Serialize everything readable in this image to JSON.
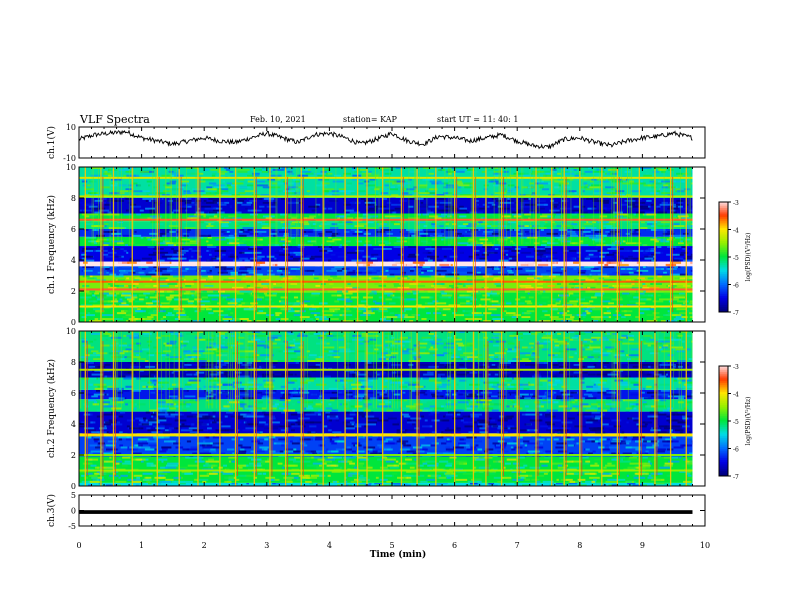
{
  "header": {
    "title": "VLF Spectra",
    "date": "Feb. 10, 2021",
    "station": "station= KAP",
    "start": "start  UT  =   11: 40: 1"
  },
  "chart_data": [
    {
      "type": "line",
      "panel": "ch1-waveform",
      "ylabel": "ch.1(V)",
      "ylim": [
        -10,
        10
      ],
      "yticks": [
        "10",
        "-10"
      ],
      "x": [
        0.0,
        0.25,
        0.5,
        0.75,
        1.0,
        1.25,
        1.5,
        1.75,
        2.0,
        2.25,
        2.5,
        2.75,
        3.0,
        3.25,
        3.5,
        3.75,
        4.0,
        4.25,
        4.5,
        4.75,
        5.0,
        5.25,
        5.5,
        5.75,
        6.0,
        6.25,
        6.5,
        6.75,
        7.0,
        7.25,
        7.5,
        7.75,
        8.0,
        8.25,
        8.5,
        8.75,
        9.0,
        9.25,
        9.5,
        9.8
      ],
      "y": [
        2,
        5,
        6,
        7,
        3,
        1,
        -1,
        1,
        3,
        1,
        0,
        3,
        6,
        3,
        0,
        5,
        6,
        3,
        -1,
        2,
        6,
        1,
        -1,
        4,
        3,
        1,
        3,
        5,
        1,
        -2,
        -3,
        2,
        3,
        0,
        -2,
        1,
        3,
        4,
        6,
        3
      ]
    },
    {
      "type": "heatmap",
      "panel": "ch1-spectrogram",
      "ylabel": "ch.1 Frequency (kHz)",
      "ylim": [
        0,
        10
      ],
      "yticks": [
        "0",
        "2",
        "4",
        "6",
        "8",
        "10"
      ],
      "colorbar": {
        "label": "log(PSD)(V²/Hz)",
        "ticks": [
          "-3",
          "-4",
          "-5",
          "-6",
          "-7"
        ],
        "range": [
          -7,
          -3
        ]
      },
      "bands_khz": [
        {
          "from": 0.0,
          "to": 1.9,
          "level": -5.0
        },
        {
          "from": 1.9,
          "to": 3.0,
          "level": -4.6
        },
        {
          "from": 3.0,
          "to": 3.6,
          "level": -6.2
        },
        {
          "from": 3.6,
          "to": 3.9,
          "level": -3.0
        },
        {
          "from": 3.9,
          "to": 4.9,
          "level": -6.5
        },
        {
          "from": 4.9,
          "to": 5.5,
          "level": -5.0
        },
        {
          "from": 5.5,
          "to": 6.0,
          "level": -6.3
        },
        {
          "from": 6.0,
          "to": 6.5,
          "level": -5.2
        },
        {
          "from": 6.5,
          "to": 7.0,
          "level": -5.0
        },
        {
          "from": 7.0,
          "to": 8.0,
          "level": -6.6
        },
        {
          "from": 8.0,
          "to": 10.0,
          "level": -5.3
        }
      ],
      "lines_khz": [
        {
          "f": 1.0,
          "level": -4.0
        },
        {
          "f": 2.1,
          "level": -3.4
        },
        {
          "f": 2.6,
          "level": -3.6
        },
        {
          "f": 6.6,
          "level": -3.4
        },
        {
          "f": 8.1,
          "level": -4.3
        },
        {
          "f": 9.3,
          "level": -4.2
        }
      ],
      "sferics_min": [
        0.1,
        0.35,
        0.55,
        0.85,
        1.25,
        1.6,
        1.9,
        2.25,
        2.5,
        2.8,
        3.05,
        3.3,
        3.55,
        3.9,
        4.25,
        4.45,
        4.6,
        4.85,
        5.15,
        5.4,
        5.7,
        6.0,
        6.3,
        6.5,
        6.75,
        7.0,
        7.3,
        7.55,
        7.75,
        8.0,
        8.35,
        8.6,
        8.95,
        9.2,
        9.45,
        9.7
      ]
    },
    {
      "type": "heatmap",
      "panel": "ch2-spectrogram",
      "ylabel": "ch.2 Frequency (kHz)",
      "ylim": [
        0,
        10
      ],
      "yticks": [
        "0",
        "2",
        "4",
        "6",
        "8",
        "10"
      ],
      "colorbar": {
        "label": "log(PSD)(V²/Hz)",
        "ticks": [
          "-3",
          "-4",
          "-5",
          "-6",
          "-7"
        ],
        "range": [
          -7,
          -3
        ]
      },
      "bands_khz": [
        {
          "from": 0.0,
          "to": 0.2,
          "level": -5.5
        },
        {
          "from": 0.2,
          "to": 1.9,
          "level": -5.0
        },
        {
          "from": 1.9,
          "to": 3.2,
          "level": -6.2
        },
        {
          "from": 3.2,
          "to": 3.4,
          "level": -4.2
        },
        {
          "from": 3.4,
          "to": 4.8,
          "level": -6.6
        },
        {
          "from": 4.8,
          "to": 5.6,
          "level": -5.2
        },
        {
          "from": 5.6,
          "to": 6.2,
          "level": -6.4
        },
        {
          "from": 6.2,
          "to": 7.0,
          "level": -5.3
        },
        {
          "from": 7.0,
          "to": 8.0,
          "level": -6.7
        },
        {
          "from": 8.0,
          "to": 10.0,
          "level": -5.2
        }
      ],
      "lines_khz": [
        {
          "f": 1.0,
          "level": -4.5
        },
        {
          "f": 2.0,
          "level": -4.6
        },
        {
          "f": 3.3,
          "level": -4.0
        },
        {
          "f": 7.5,
          "level": -4.4
        }
      ],
      "sferics_min": [
        0.1,
        0.35,
        0.55,
        0.85,
        1.25,
        1.6,
        1.9,
        2.25,
        2.5,
        2.8,
        3.05,
        3.3,
        3.55,
        3.9,
        4.25,
        4.45,
        4.6,
        4.85,
        5.15,
        5.4,
        5.7,
        6.0,
        6.3,
        6.5,
        6.75,
        7.0,
        7.3,
        7.55,
        7.75,
        8.0,
        8.35,
        8.6,
        8.95,
        9.2,
        9.45,
        9.7
      ]
    },
    {
      "type": "line",
      "panel": "ch3-waveform",
      "ylabel": "ch.3(V)",
      "ylim": [
        -5,
        5
      ],
      "yticks": [
        "5",
        "0",
        "-5"
      ],
      "x": [
        0.0,
        9.8
      ],
      "y": [
        -0.5,
        -0.5
      ],
      "spread": 0.6
    }
  ],
  "xaxis": {
    "label": "Time  (min)",
    "ticks": [
      "0",
      "1",
      "2",
      "3",
      "4",
      "5",
      "6",
      "7",
      "8",
      "9",
      "10"
    ],
    "range": [
      0,
      10
    ]
  }
}
